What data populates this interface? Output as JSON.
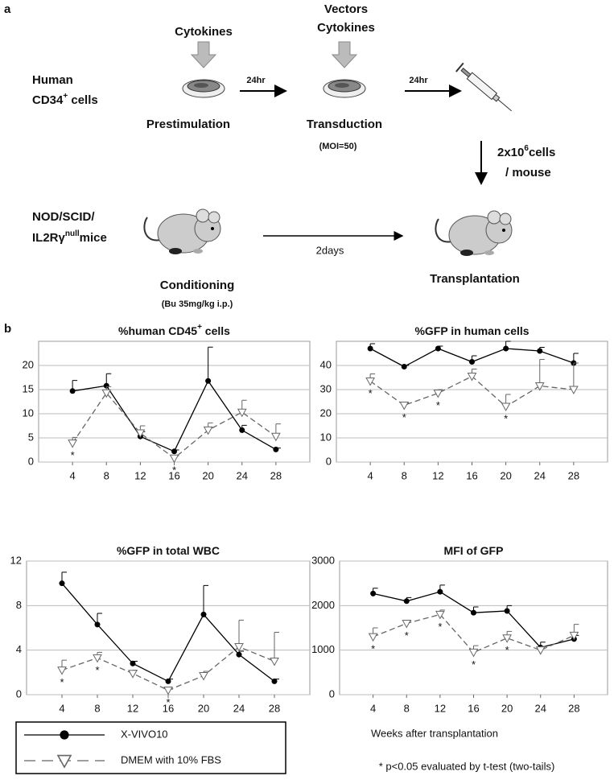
{
  "panel_a": {
    "label": "a",
    "cytokines_1": "Cytokines",
    "vectors": "Vectors",
    "cytokines_2": "Cytokines",
    "cells": {
      "line1": "Human",
      "base": "CD34",
      "sup": "+",
      "rest": " cells"
    },
    "step1_time": "24hr",
    "step2_time": "24hr",
    "prestimulation": "Prestimulation",
    "transduction": "Transduction",
    "moi": "(MOI=50)",
    "dose": {
      "base": "2x10",
      "sup": "6",
      "rest": "cells",
      "line2": "/ mouse"
    },
    "mice": {
      "line1": "NOD/SCID/",
      "base": "IL2Rγ",
      "sup": "null",
      "rest": "mice"
    },
    "interval": "2days",
    "conditioning": "Conditioning",
    "busulfan": "(Bu 35mg/kg i.p.)",
    "transplantation": "Transplantation"
  },
  "panel_b_label": "b",
  "x_label": "Weeks after transplantation",
  "footnote": "* p<0.05 evaluated by t-test (two-tails)",
  "significance_marker": "*",
  "legend": [
    {
      "name": "X-VIVO10"
    },
    {
      "name": "DMEM with 10% FBS"
    }
  ],
  "chart_data": [
    {
      "type": "line",
      "title": {
        "base": "%human CD45",
        "sup": "+",
        "rest": " cells"
      },
      "x": [
        4,
        8,
        12,
        16,
        20,
        24,
        28
      ],
      "xlim": [
        0,
        32
      ],
      "xticks": [
        4,
        8,
        12,
        16,
        20,
        24,
        28
      ],
      "ylim": [
        0,
        25
      ],
      "yticks": [
        0,
        5,
        10,
        15,
        20
      ],
      "grid": true,
      "series": [
        {
          "color": "#000000",
          "dash": false,
          "marker": "circle",
          "values": [
            14.7,
            15.8,
            5.3,
            2.2,
            16.8,
            6.6,
            2.6
          ],
          "errors": [
            2.2,
            2.5,
            1,
            0.3,
            7,
            1,
            0.3
          ]
        },
        {
          "color": "#666666",
          "dash": true,
          "marker": "triangle-down",
          "values": [
            3.9,
            14.3,
            6,
            0.8,
            6.6,
            10.3,
            5.3
          ],
          "errors": [
            1.2,
            1.3,
            1.5,
            0.5,
            1.5,
            2.5,
            2.6
          ]
        }
      ],
      "significant_x": [
        4,
        16
      ]
    },
    {
      "type": "line",
      "title": {
        "base": "%GFP in human cells"
      },
      "x": [
        4,
        8,
        12,
        16,
        20,
        24,
        28
      ],
      "xlim": [
        0,
        32
      ],
      "xticks": [
        4,
        8,
        12,
        16,
        20,
        24,
        28
      ],
      "ylim": [
        0,
        50
      ],
      "yticks": [
        0,
        10,
        20,
        30,
        40
      ],
      "grid": true,
      "series": [
        {
          "color": "#000000",
          "dash": false,
          "marker": "circle",
          "values": [
            47,
            39.5,
            47,
            41.5,
            47,
            46,
            41
          ],
          "errors": [
            2,
            0.5,
            1,
            2.5,
            3,
            1.5,
            4
          ]
        },
        {
          "color": "#666666",
          "dash": true,
          "marker": "triangle-down",
          "values": [
            33.5,
            23.5,
            28.5,
            35.5,
            23,
            31.5,
            30
          ],
          "errors": [
            3,
            1,
            1.5,
            3,
            5,
            11,
            11
          ]
        }
      ],
      "significant_x": [
        4,
        8,
        12,
        20
      ]
    },
    {
      "type": "line",
      "title": {
        "base": "%GFP in total WBC"
      },
      "x": [
        4,
        8,
        12,
        16,
        20,
        24,
        28
      ],
      "xlim": [
        0,
        32
      ],
      "xticks": [
        4,
        8,
        12,
        16,
        20,
        24,
        28
      ],
      "ylim": [
        0,
        12
      ],
      "yticks": [
        0,
        4,
        8,
        12
      ],
      "grid": true,
      "series": [
        {
          "color": "#000000",
          "dash": false,
          "marker": "circle",
          "values": [
            10,
            6.3,
            2.8,
            1.2,
            7.2,
            3.6,
            1.2
          ],
          "errors": [
            1,
            1,
            0.2,
            0.2,
            2.6,
            0.3,
            0.2
          ]
        },
        {
          "color": "#666666",
          "dash": true,
          "marker": "triangle-down",
          "values": [
            2.2,
            3.3,
            1.9,
            0.4,
            1.7,
            4.3,
            3
          ],
          "errors": [
            0.9,
            0.5,
            0.3,
            0.1,
            0.4,
            2.4,
            2.6
          ]
        }
      ],
      "significant_x": [
        4,
        8,
        16
      ]
    },
    {
      "type": "line",
      "title": {
        "base": "MFI of GFP"
      },
      "x": [
        4,
        8,
        12,
        16,
        20,
        24,
        28
      ],
      "xlim": [
        0,
        32
      ],
      "xticks": [
        4,
        8,
        12,
        16,
        20,
        24,
        28
      ],
      "ylim": [
        0,
        3000
      ],
      "yticks": [
        0,
        1000,
        2000,
        3000
      ],
      "grid": true,
      "series": [
        {
          "color": "#000000",
          "dash": false,
          "marker": "circle",
          "values": [
            2270,
            2100,
            2310,
            1840,
            1880,
            1060,
            1250
          ],
          "errors": [
            120,
            80,
            150,
            130,
            120,
            120,
            80
          ]
        },
        {
          "color": "#666666",
          "dash": true,
          "marker": "triangle-down",
          "values": [
            1300,
            1600,
            1800,
            950,
            1270,
            1000,
            1330
          ],
          "errors": [
            200,
            60,
            100,
            150,
            150,
            80,
            250
          ]
        }
      ],
      "significant_x": [
        4,
        8,
        12,
        16,
        20
      ]
    }
  ]
}
